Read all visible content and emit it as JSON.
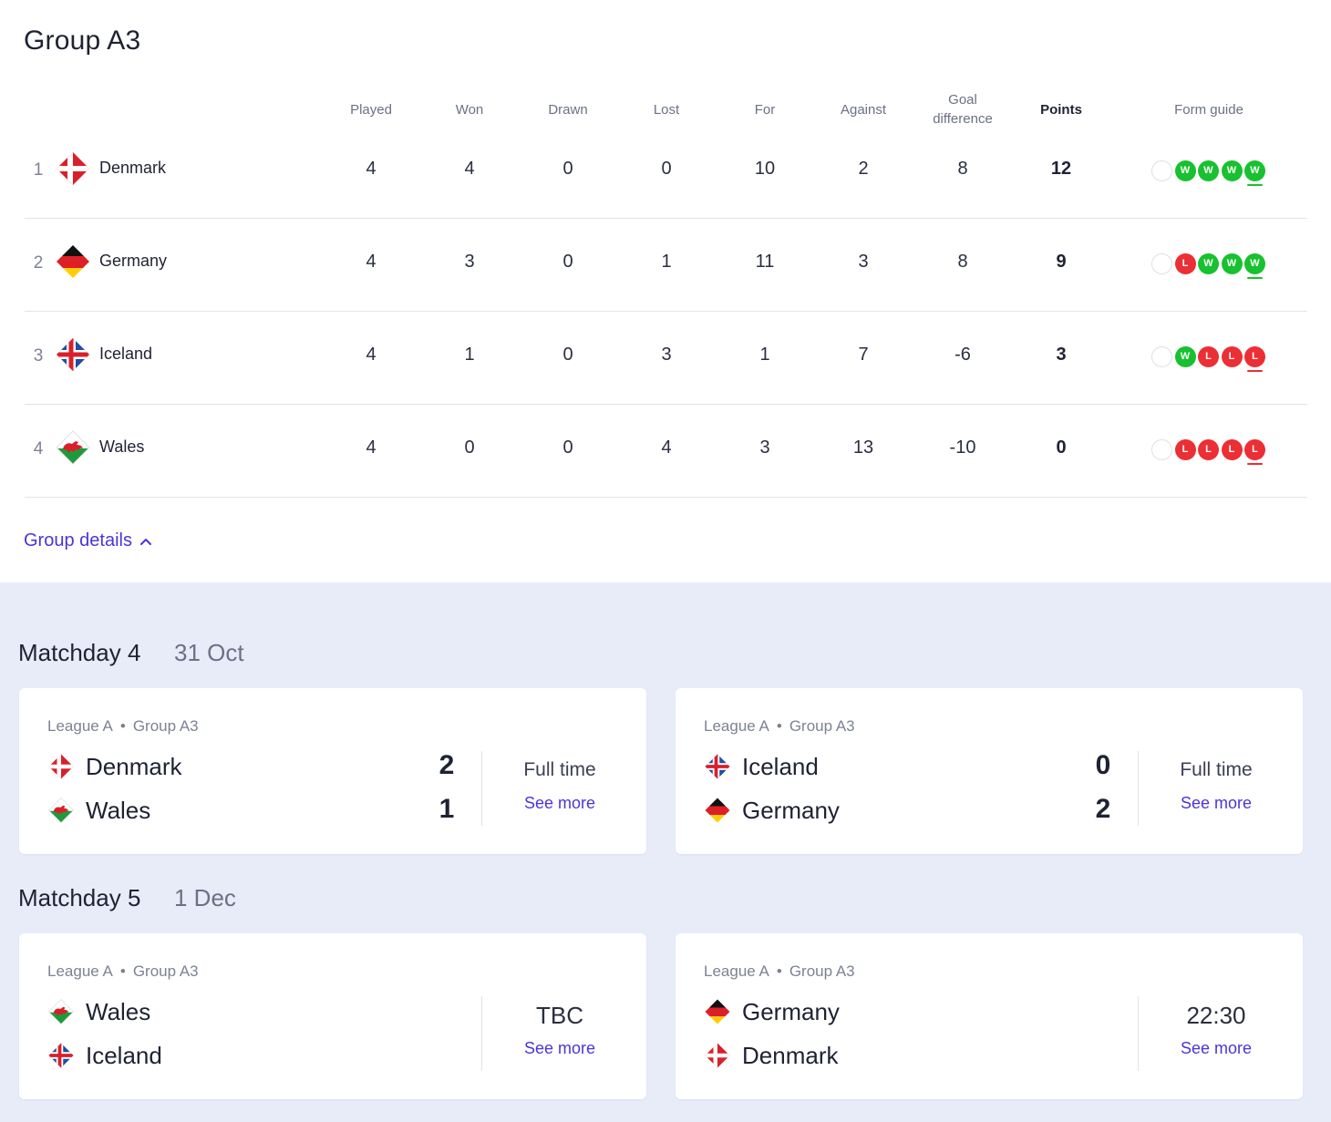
{
  "group": {
    "title": "Group A3",
    "details_label": "Group details"
  },
  "table": {
    "headers": {
      "played": "Played",
      "won": "Won",
      "drawn": "Drawn",
      "lost": "Lost",
      "for": "For",
      "against": "Against",
      "goal_diff_1": "Goal",
      "goal_diff_2": "difference",
      "points": "Points",
      "form": "Form guide"
    },
    "rows": [
      {
        "rank": "1",
        "team": "Denmark",
        "played": "4",
        "won": "4",
        "drawn": "0",
        "lost": "0",
        "for": "10",
        "against": "2",
        "gd": "8",
        "points": "12",
        "form": [
          "W",
          "W",
          "W",
          "W"
        ]
      },
      {
        "rank": "2",
        "team": "Germany",
        "played": "4",
        "won": "3",
        "drawn": "0",
        "lost": "1",
        "for": "11",
        "against": "3",
        "gd": "8",
        "points": "9",
        "form": [
          "L",
          "W",
          "W",
          "W"
        ]
      },
      {
        "rank": "3",
        "team": "Iceland",
        "played": "4",
        "won": "1",
        "drawn": "0",
        "lost": "3",
        "for": "1",
        "against": "7",
        "gd": "-6",
        "points": "3",
        "form": [
          "W",
          "L",
          "L",
          "L"
        ]
      },
      {
        "rank": "4",
        "team": "Wales",
        "played": "4",
        "won": "0",
        "drawn": "0",
        "lost": "4",
        "for": "3",
        "against": "13",
        "gd": "-10",
        "points": "0",
        "form": [
          "L",
          "L",
          "L",
          "L"
        ]
      }
    ]
  },
  "matchdays": [
    {
      "title": "Matchday 4",
      "date": "31 Oct",
      "matches": [
        {
          "league": "League A",
          "group": "Group A3",
          "home": "Denmark",
          "away": "Wales",
          "home_score": "2",
          "away_score": "1",
          "status": "Full time",
          "link": "See more"
        },
        {
          "league": "League A",
          "group": "Group A3",
          "home": "Iceland",
          "away": "Germany",
          "home_score": "0",
          "away_score": "2",
          "status": "Full time",
          "link": "See more"
        }
      ]
    },
    {
      "title": "Matchday 5",
      "date": "1 Dec",
      "matches": [
        {
          "league": "League A",
          "group": "Group A3",
          "home": "Wales",
          "away": "Iceland",
          "status": "TBC",
          "link": "See more"
        },
        {
          "league": "League A",
          "group": "Group A3",
          "home": "Germany",
          "away": "Denmark",
          "status": "22:30",
          "link": "See more"
        }
      ]
    }
  ],
  "colors": {
    "win": "#18c12f",
    "loss": "#ec2e35",
    "accent": "#4a35d8",
    "fixtures_bg": "#e8ecf9"
  },
  "icons": {
    "denmark": "denmark-flag-icon",
    "germany": "germany-flag-icon",
    "iceland": "iceland-flag-icon",
    "wales": "wales-flag-icon",
    "chevron": "chevron-up-icon"
  }
}
